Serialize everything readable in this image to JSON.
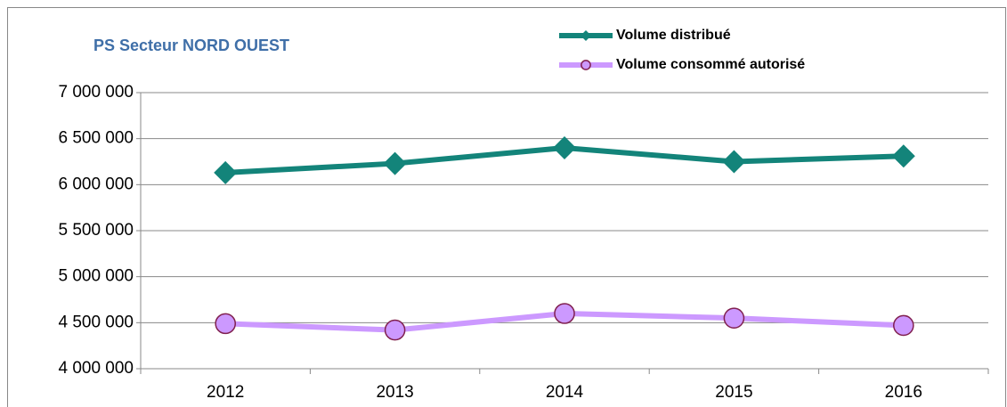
{
  "chart_data": {
    "type": "line",
    "title": "PS Secteur NORD OUEST",
    "categories": [
      "2012",
      "2013",
      "2014",
      "2015",
      "2016"
    ],
    "series": [
      {
        "name": "Volume distribué",
        "color": "#13847a",
        "marker": "diamond",
        "values": [
          6130000,
          6230000,
          6400000,
          6250000,
          6310000
        ]
      },
      {
        "name": "Volume consommé autorisé",
        "color": "#cc99ff",
        "marker": "circle",
        "marker_edge": "#80204f",
        "values": [
          4490000,
          4420000,
          4600000,
          4550000,
          4470000
        ]
      }
    ],
    "ylim": [
      4000000,
      7000000
    ],
    "yticks": [
      {
        "value": 4000000,
        "label": "4 000 000"
      },
      {
        "value": 4500000,
        "label": "4 500 000"
      },
      {
        "value": 5000000,
        "label": "5 000 000"
      },
      {
        "value": 5500000,
        "label": "5 500 000"
      },
      {
        "value": 6000000,
        "label": "6 000 000"
      },
      {
        "value": 6500000,
        "label": "6 500 000"
      },
      {
        "value": 7000000,
        "label": "7 000 000"
      }
    ],
    "grid": true,
    "legend": "top"
  }
}
